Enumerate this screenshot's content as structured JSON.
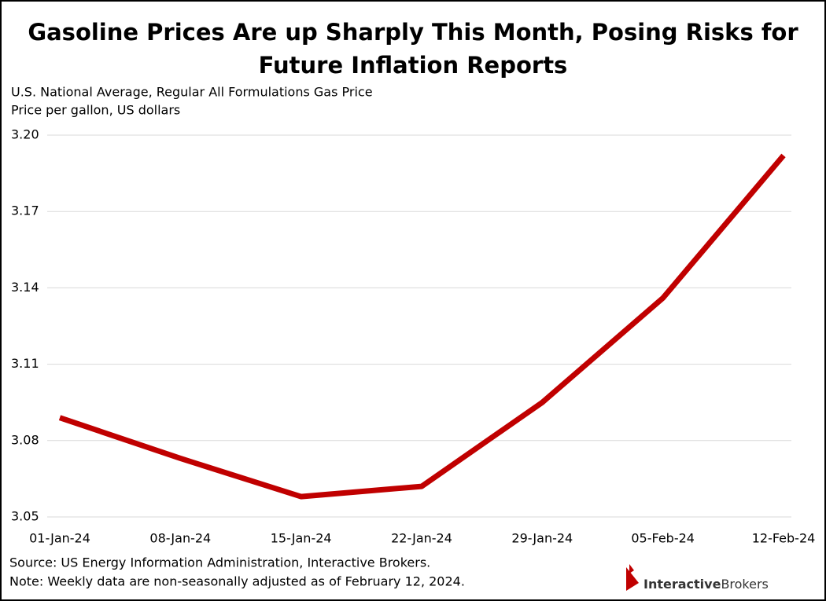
{
  "chart_data": {
    "type": "line",
    "title": "Gasoline Prices Are up Sharply This Month, Posing Risks for Future Inflation Reports",
    "subtitle": "U.S. National Average, Regular All Formulations Gas Price",
    "y_label": "Price per gallon, US dollars",
    "categories": [
      "01-Jan-24",
      "08-Jan-24",
      "15-Jan-24",
      "22-Jan-24",
      "29-Jan-24",
      "05-Feb-24",
      "12-Feb-24"
    ],
    "series": [
      {
        "name": "Regular All Formulations Gas Price",
        "color": "#c00000",
        "values": [
          3.089,
          3.073,
          3.058,
          3.062,
          3.095,
          3.136,
          3.192
        ]
      }
    ],
    "ylim": [
      3.05,
      3.2
    ],
    "yticks": [
      3.05,
      3.08,
      3.11,
      3.14,
      3.17,
      {
        "value": 3.2,
        "label": "3.20"
      }
    ],
    "grid": true,
    "source": "Source: US Energy Information Administration, Interactive Brokers.",
    "note": "Note: Weekly data are non-seasonally adjusted as of February 12, 2024.",
    "logo": {
      "first": "Interactive",
      "second": "Brokers"
    }
  }
}
